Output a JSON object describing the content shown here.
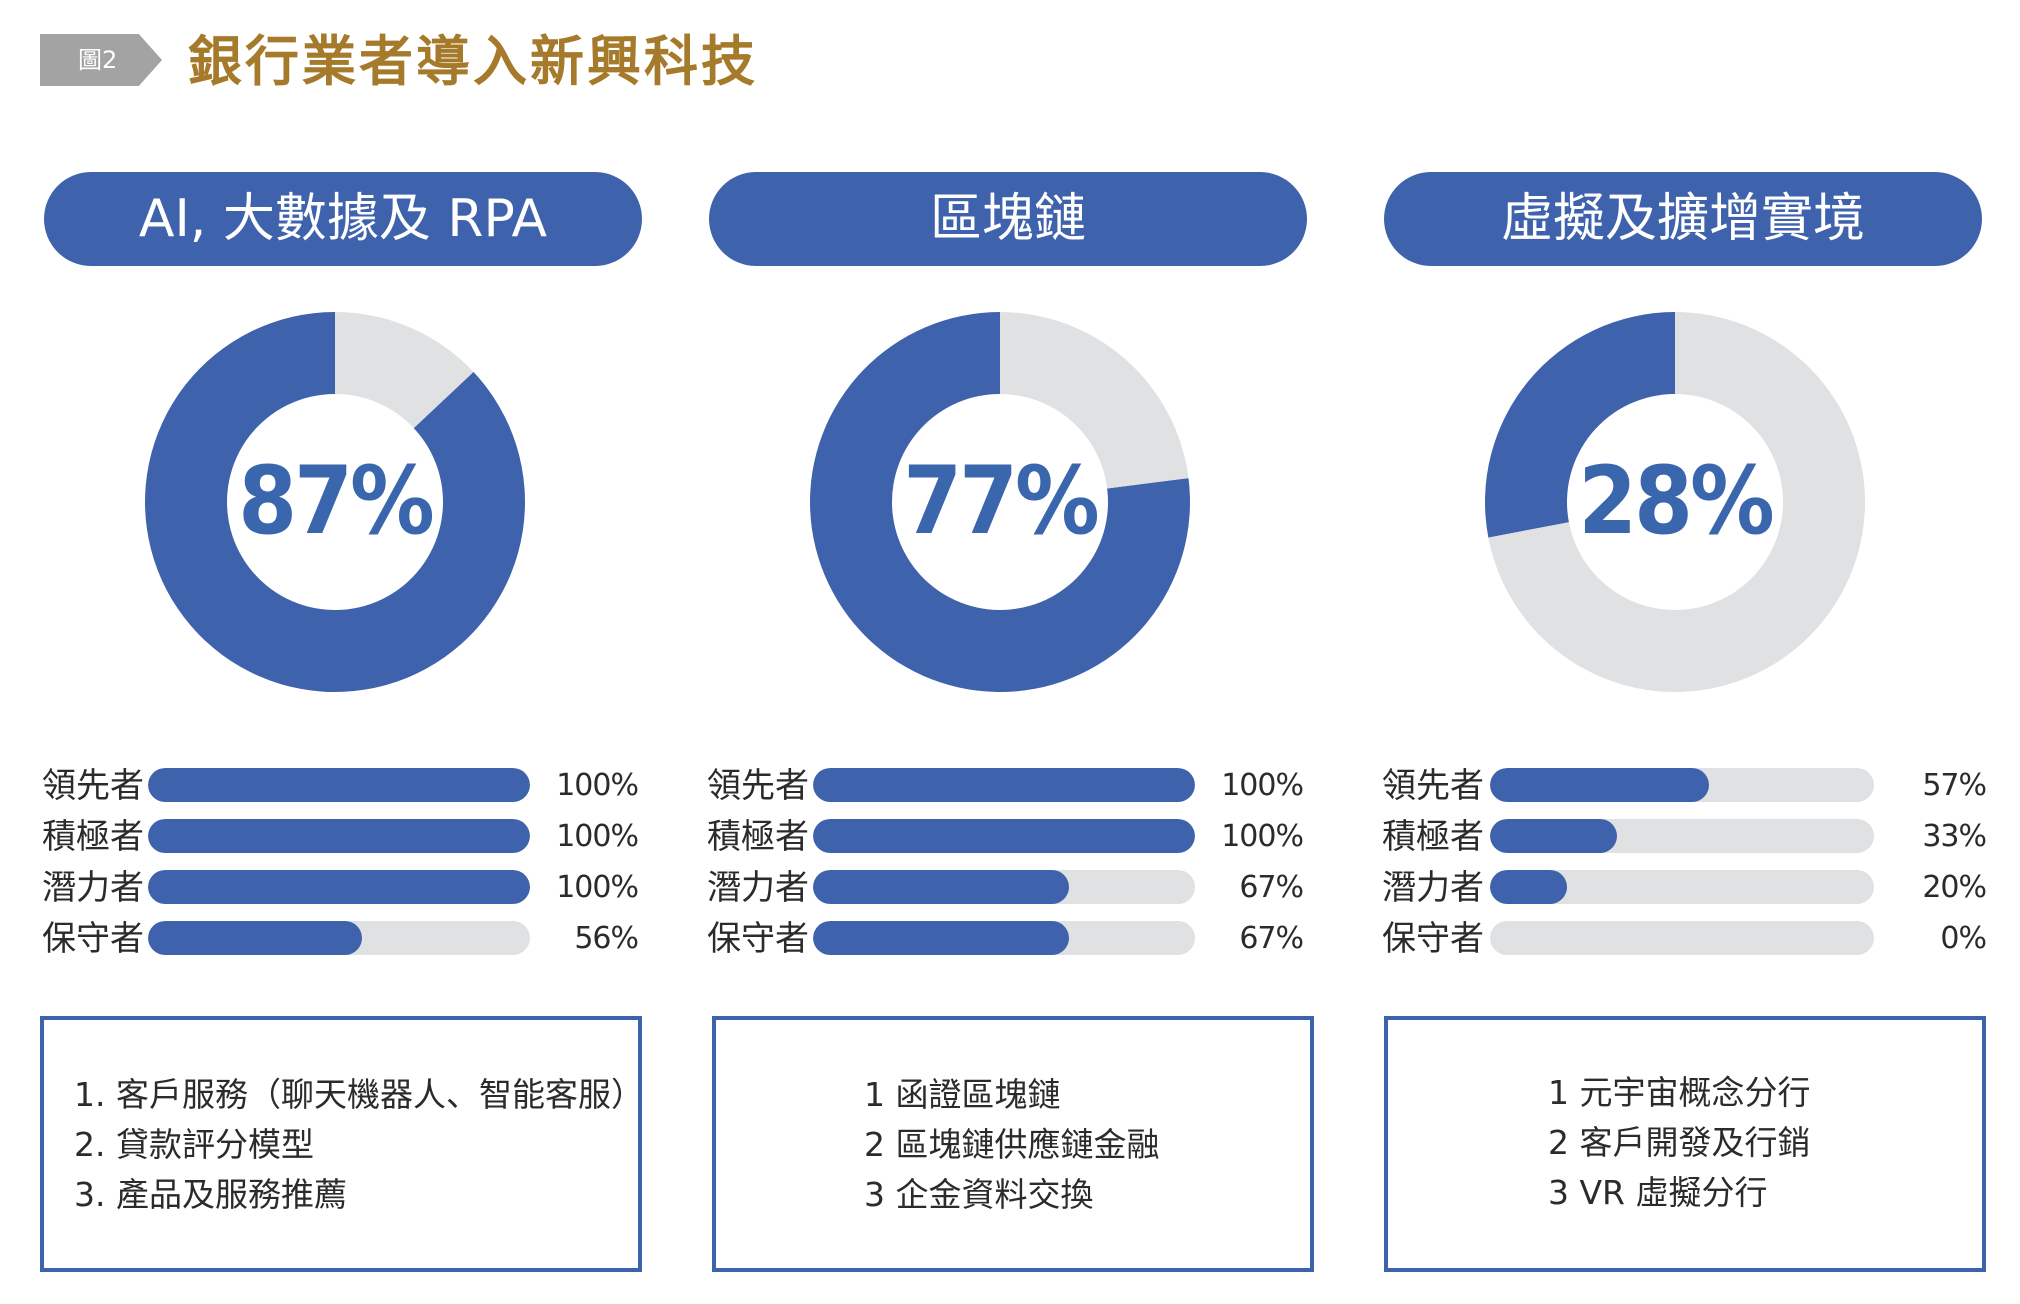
{
  "header": {
    "tag": "圖2",
    "title": "銀行業者導入新興科技"
  },
  "colors": {
    "primary": "#3f62ad",
    "track": "#e0e1e2",
    "title_gold": "#a57a2a",
    "tag_gray": "#a3a3a3"
  },
  "chart_data": [
    {
      "type": "pie",
      "title": "AI, 大數據及 RPA",
      "value_label": "87%",
      "slices": [
        {
          "value": 87
        },
        {
          "value": 13
        }
      ],
      "bars": {
        "type": "bar",
        "categories": [
          "領先者",
          "積極者",
          "潛力者",
          "保守者"
        ],
        "values": [
          100,
          100,
          100,
          56
        ],
        "value_labels": [
          "100%",
          "100%",
          "100%",
          "56%"
        ],
        "ylim": [
          0,
          100
        ]
      },
      "notes": [
        "1. 客戶服務（聊天機器人、智能客服）",
        "2. 貸款評分模型",
        "3. 產品及服務推薦"
      ]
    },
    {
      "type": "pie",
      "title": "區塊鏈",
      "value_label": "77%",
      "slices": [
        {
          "value": 77
        },
        {
          "value": 23
        }
      ],
      "bars": {
        "type": "bar",
        "categories": [
          "領先者",
          "積極者",
          "潛力者",
          "保守者"
        ],
        "values": [
          100,
          100,
          67,
          67
        ],
        "value_labels": [
          "100%",
          "100%",
          "67%",
          "67%"
        ],
        "ylim": [
          0,
          100
        ]
      },
      "notes": [
        "1 函證區塊鏈",
        "2 區塊鏈供應鏈金融",
        "3 企金資料交換"
      ]
    },
    {
      "type": "pie",
      "title": "虛擬及擴增實境",
      "value_label": "28%",
      "slices": [
        {
          "value": 28
        },
        {
          "value": 72
        }
      ],
      "bars": {
        "type": "bar",
        "categories": [
          "領先者",
          "積極者",
          "潛力者",
          "保守者"
        ],
        "values": [
          57,
          33,
          20,
          0
        ],
        "value_labels": [
          "57%",
          "33%",
          "20%",
          "0%"
        ],
        "ylim": [
          0,
          100
        ]
      },
      "notes": [
        "1 元宇宙概念分行",
        "2 客戶開發及行銷",
        "3 VR 虛擬分行"
      ]
    }
  ]
}
